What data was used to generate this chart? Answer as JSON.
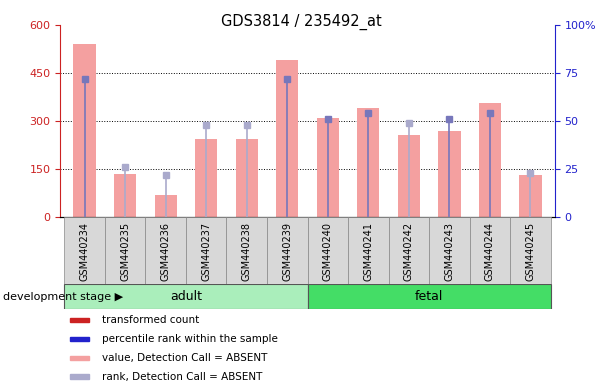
{
  "title": "GDS3814 / 235492_at",
  "samples": [
    "GSM440234",
    "GSM440235",
    "GSM440236",
    "GSM440237",
    "GSM440238",
    "GSM440239",
    "GSM440240",
    "GSM440241",
    "GSM440242",
    "GSM440243",
    "GSM440244",
    "GSM440245"
  ],
  "transformed_count": [
    540,
    135,
    70,
    245,
    245,
    490,
    310,
    340,
    255,
    270,
    355,
    130
  ],
  "percentile_rank": [
    72,
    26,
    22,
    48,
    48,
    72,
    51,
    54,
    49,
    51,
    54,
    23
  ],
  "detection_call": [
    "P",
    "A",
    "A",
    "A",
    "A",
    "P",
    "P",
    "P",
    "A",
    "P",
    "P",
    "A"
  ],
  "bar_color": "#f4a0a0",
  "rank_color_present": "#7777bb",
  "rank_color_absent": "#aaaacc",
  "ylim_left": [
    0,
    600
  ],
  "ylim_right": [
    0,
    100
  ],
  "yticks_left": [
    0,
    150,
    300,
    450,
    600
  ],
  "yticks_right": [
    0,
    25,
    50,
    75,
    100
  ],
  "yticklabels_right": [
    "0",
    "25",
    "50",
    "75",
    "100%"
  ],
  "left_tick_color": "#cc2222",
  "right_tick_color": "#2222cc",
  "adult_label": "adult",
  "fetal_label": "fetal",
  "adult_color": "#aaeebb",
  "fetal_color": "#44dd66",
  "stage_label": "development stage",
  "legend_colors": [
    "#cc2222",
    "#2222cc",
    "#f4a0a0",
    "#aaaacc"
  ],
  "legend_labels": [
    "transformed count",
    "percentile rank within the sample",
    "value, Detection Call = ABSENT",
    "rank, Detection Call = ABSENT"
  ]
}
